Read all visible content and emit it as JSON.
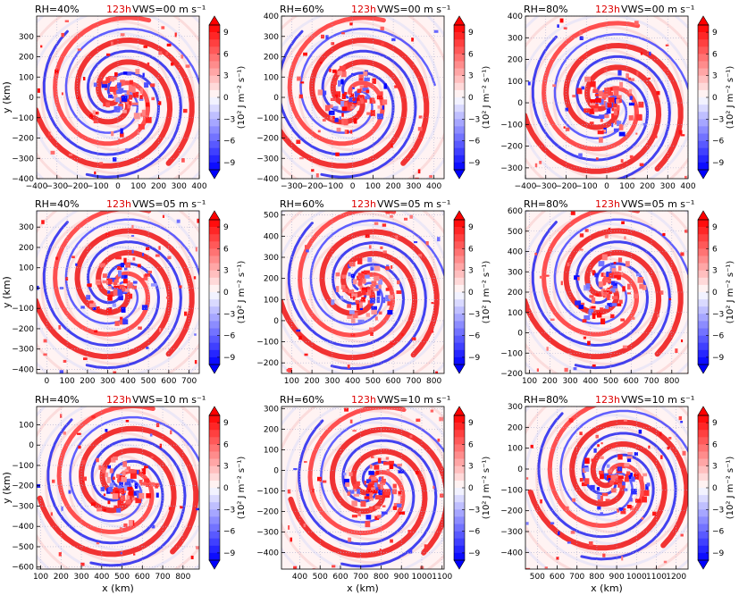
{
  "figure": {
    "colorbar_ticks": [
      "9",
      "6",
      "3",
      "0",
      "−3",
      "−6",
      "−9"
    ],
    "colorbar_label": "(10² J m⁻² s⁻¹)",
    "xlabel": "x (km)",
    "ylabel": "y (km)",
    "colors": {
      "positive": "#ff0000",
      "negative": "#0000ff",
      "zero": "#ffffff",
      "grid": "#b0b0d0"
    }
  },
  "chart_data": [
    {
      "type": "heatmap",
      "rh": "RH=40%",
      "time": "123h",
      "vws": "VWS=00 m s⁻¹",
      "xticks": [
        "−400",
        "−300",
        "−200",
        "−100",
        "0",
        "100",
        "200",
        "300",
        "400"
      ],
      "xlim": [
        -400,
        400
      ],
      "yticks": [
        "300",
        "200",
        "100",
        "0",
        "−100",
        "−200",
        "−300",
        "−400"
      ],
      "ylim": [
        -400,
        400
      ],
      "center": [
        0,
        0
      ],
      "clim": [
        -10,
        10
      ]
    },
    {
      "type": "heatmap",
      "rh": "RH=60%",
      "time": "123h",
      "vws": "VWS=00 m s⁻¹",
      "xticks": [
        "−300",
        "−200",
        "−100",
        "0",
        "100",
        "200",
        "300",
        "400"
      ],
      "xlim": [
        -350,
        450
      ],
      "yticks": [
        "400",
        "300",
        "200",
        "100",
        "0",
        "−100",
        "−200",
        "−300",
        "−400"
      ],
      "ylim": [
        -400,
        400
      ],
      "center": [
        0,
        0
      ],
      "clim": [
        -10,
        10
      ]
    },
    {
      "type": "heatmap",
      "rh": "RH=80%",
      "time": "123h",
      "vws": "VWS=00 m s⁻¹",
      "xticks": [
        "−400",
        "−300",
        "−200",
        "−100",
        "0",
        "100",
        "200",
        "300",
        "400"
      ],
      "xlim": [
        -400,
        400
      ],
      "yticks": [
        "400",
        "300",
        "200",
        "100",
        "0",
        "−100",
        "−200",
        "−300"
      ],
      "ylim": [
        -350,
        400
      ],
      "center": [
        0,
        0
      ],
      "clim": [
        -10,
        10
      ]
    },
    {
      "type": "heatmap",
      "rh": "RH=40%",
      "time": "123h",
      "vws": "VWS=05 m s⁻¹",
      "xticks": [
        "0",
        "100",
        "200",
        "300",
        "400",
        "500",
        "600",
        "700"
      ],
      "xlim": [
        -50,
        750
      ],
      "yticks": [
        "300",
        "200",
        "100",
        "0",
        "−100",
        "−200",
        "−300",
        "−400"
      ],
      "ylim": [
        -420,
        380
      ],
      "center": [
        350,
        0
      ],
      "clim": [
        -10,
        10
      ]
    },
    {
      "type": "heatmap",
      "rh": "RH=60%",
      "time": "123h",
      "vws": "VWS=05 m s⁻¹",
      "xticks": [
        "100",
        "200",
        "300",
        "400",
        "500",
        "600",
        "700",
        "800"
      ],
      "xlim": [
        50,
        850
      ],
      "yticks": [
        "500",
        "400",
        "300",
        "200",
        "100",
        "0",
        "−100",
        "−200"
      ],
      "ylim": [
        -250,
        520
      ],
      "center": [
        450,
        150
      ],
      "clim": [
        -10,
        10
      ]
    },
    {
      "type": "heatmap",
      "rh": "RH=80%",
      "time": "123h",
      "vws": "VWS=05 m s⁻¹",
      "xticks": [
        "100",
        "200",
        "300",
        "400",
        "500",
        "600",
        "700",
        "800"
      ],
      "xlim": [
        80,
        880
      ],
      "yticks": [
        "600",
        "500",
        "400",
        "300",
        "200",
        "100",
        "0",
        "−100",
        "−200"
      ],
      "ylim": [
        -200,
        600
      ],
      "center": [
        480,
        220
      ],
      "clim": [
        -10,
        10
      ]
    },
    {
      "type": "heatmap",
      "rh": "RH=40%",
      "time": "123h",
      "vws": "VWS=10 m s⁻¹",
      "xticks": [
        "100",
        "200",
        "300",
        "400",
        "500",
        "600",
        "700",
        "800"
      ],
      "xlim": [
        80,
        880
      ],
      "yticks": [
        "100",
        "0",
        "−100",
        "−200",
        "−300",
        "−400",
        "−500",
        "−600"
      ],
      "ylim": [
        -610,
        190
      ],
      "center": [
        500,
        -200
      ],
      "clim": [
        -10,
        10
      ]
    },
    {
      "type": "heatmap",
      "rh": "RH=60%",
      "time": "123h",
      "vws": "VWS=10 m s⁻¹",
      "xticks": [
        "400",
        "500",
        "600",
        "700",
        "800",
        "900",
        "1000",
        "1100"
      ],
      "xlim": [
        310,
        1110
      ],
      "yticks": [
        "300",
        "200",
        "100",
        "0",
        "−100",
        "−200",
        "−300",
        "−400"
      ],
      "ylim": [
        -480,
        310
      ],
      "center": [
        760,
        -80
      ],
      "clim": [
        -10,
        10
      ]
    },
    {
      "type": "heatmap",
      "rh": "RH=80%",
      "time": "123h",
      "vws": "VWS=10 m s⁻¹",
      "xticks": [
        "500",
        "600",
        "700",
        "800",
        "900",
        "1000",
        "1100",
        "1200"
      ],
      "xlim": [
        440,
        1260
      ],
      "yticks": [
        "300",
        "200",
        "100",
        "0",
        "−100",
        "−200",
        "−300",
        "−400"
      ],
      "ylim": [
        -480,
        300
      ],
      "center": [
        880,
        -50
      ],
      "clim": [
        -10,
        10
      ]
    }
  ]
}
